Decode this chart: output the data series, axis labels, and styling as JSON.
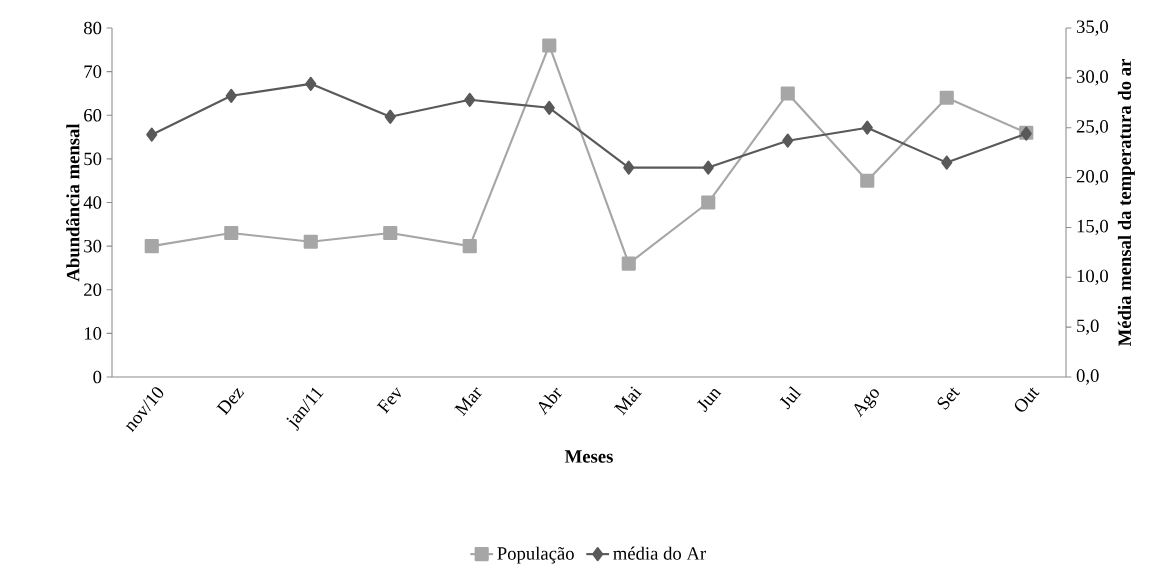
{
  "chart_data": {
    "type": "line",
    "xlabel": "Meses",
    "ylabel": "Abundância mensal",
    "y2label": "Média mensal da temperatura do ar",
    "categories": [
      "nov/10",
      "Dez",
      "jan/11",
      "Fev",
      "Mar",
      "Abr",
      "Mai",
      "Jun",
      "Jul",
      "Ago",
      "Set",
      "Out"
    ],
    "series": [
      {
        "name": "População",
        "color": "#a6a6a6",
        "marker": "square",
        "values": [
          30,
          33,
          31,
          33,
          30,
          76,
          26,
          40,
          65,
          45,
          64,
          56
        ]
      },
      {
        "name": "média do Ar",
        "color": "#595959",
        "marker": "diamond",
        "axis": "y2",
        "values": [
          24.3,
          28.2,
          29.4,
          26.1,
          27.8,
          27.0,
          21.0,
          21.0,
          23.7,
          25.0,
          21.5,
          24.4
        ]
      }
    ],
    "ylim": [
      0,
      80
    ],
    "yticks": [
      0,
      10,
      20,
      30,
      40,
      50,
      60,
      70,
      80
    ],
    "y2lim": [
      0,
      35
    ],
    "y2ticks": [
      {
        "value": 0,
        "label": "0,0"
      },
      {
        "value": 5,
        "label": "5,0"
      },
      {
        "value": 10,
        "label": "10,0"
      },
      {
        "value": 15,
        "label": "15,0"
      },
      {
        "value": 20,
        "label": "20,0"
      },
      {
        "value": 25,
        "label": "25,0"
      },
      {
        "value": 30,
        "label": "30,0"
      },
      {
        "value": 35,
        "label": "35,0"
      }
    ],
    "grid": false,
    "legend": "bottom"
  }
}
